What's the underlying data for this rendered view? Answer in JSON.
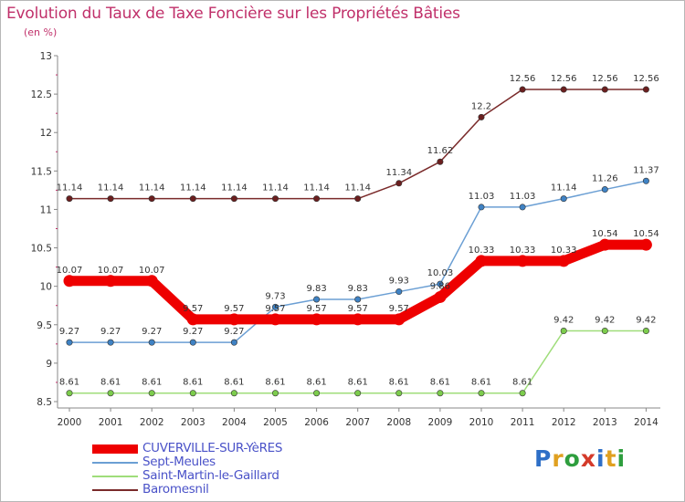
{
  "title": "Evolution du Taux de Taxe Foncière sur les Propriétés Bâties",
  "unit": "(en %)",
  "logo": "Proxiti",
  "logo_letter_colors": [
    "#2e6fc7",
    "#e0a020",
    "#2e9e3e",
    "#d43a2a",
    "#2e6fc7",
    "#e0a020",
    "#2e9e3e"
  ],
  "chart_data": {
    "type": "line",
    "title": "Evolution du Taux de Taxe Foncière sur les Propriétés Bâties",
    "ylabel": "(en %)",
    "x": [
      "2000",
      "2001",
      "2002",
      "2003",
      "2004",
      "2005",
      "2006",
      "2007",
      "2008",
      "2009",
      "2010",
      "2011",
      "2012",
      "2013",
      "2014"
    ],
    "ylim": [
      8.5,
      13
    ],
    "yticks": [
      "8.5",
      "9",
      "9.5",
      "10",
      "10.5",
      "11",
      "11.5",
      "12",
      "12.5",
      "13"
    ],
    "grid": false,
    "legend_position": "bottom-left",
    "series": [
      {
        "name": "CUVERVILLE-SUR-YèRES",
        "color": "#ee0000",
        "highlight": true,
        "values": [
          10.07,
          10.07,
          10.07,
          9.57,
          9.57,
          9.57,
          9.57,
          9.57,
          9.57,
          9.86,
          10.33,
          10.33,
          10.33,
          10.54,
          10.54
        ],
        "labels": [
          "10.07",
          "10.07",
          "10.07",
          "9.57",
          "9.57",
          "9.57",
          "9.57",
          "9.57",
          "9.57",
          "9.86",
          "10.33",
          "10.33",
          "10.33",
          "10.54",
          "10.54"
        ]
      },
      {
        "name": "Sept-Meules",
        "color": "#6b9fd4",
        "marker": "#3f82c4",
        "highlight": false,
        "values": [
          9.27,
          9.27,
          9.27,
          9.27,
          9.27,
          9.73,
          9.83,
          9.83,
          9.93,
          10.03,
          11.03,
          11.03,
          11.14,
          11.26,
          11.37
        ],
        "labels": [
          "9.27",
          "9.27",
          "9.27",
          "9.27",
          "9.27",
          "9.73",
          "9.83",
          "9.83",
          "9.93",
          "10.03",
          "11.03",
          "11.03",
          "11.14",
          "11.26",
          "11.37"
        ]
      },
      {
        "name": "Saint-Martin-le-Gaillard",
        "color": "#9fdd7a",
        "marker": "#7ccc4c",
        "highlight": false,
        "values": [
          8.61,
          8.61,
          8.61,
          8.61,
          8.61,
          8.61,
          8.61,
          8.61,
          8.61,
          8.61,
          8.61,
          8.61,
          9.42,
          9.42,
          9.42
        ],
        "labels": [
          "8.61",
          "8.61",
          "8.61",
          "8.61",
          "8.61",
          "8.61",
          "8.61",
          "8.61",
          "8.61",
          "8.61",
          "8.61",
          "8.61",
          "9.42",
          "9.42",
          "9.42"
        ]
      },
      {
        "name": "Baromesnil",
        "color": "#7a2a2a",
        "marker": "#6b1f1f",
        "highlight": false,
        "values": [
          11.14,
          11.14,
          11.14,
          11.14,
          11.14,
          11.14,
          11.14,
          11.14,
          11.34,
          11.62,
          12.2,
          12.56,
          12.56,
          12.56,
          12.56
        ],
        "labels": [
          "11.14",
          "11.14",
          "11.14",
          "11.14",
          "11.14",
          "11.14",
          "11.14",
          "11.14",
          "11.34",
          "11.62",
          "12.2",
          "12.56",
          "12.56",
          "12.56",
          "12.56"
        ]
      }
    ]
  }
}
